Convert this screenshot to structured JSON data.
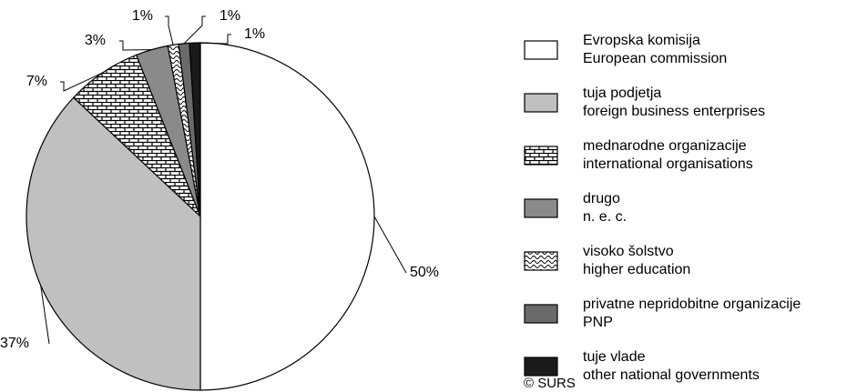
{
  "chart_data": {
    "type": "pie",
    "categories": [
      [
        "Evropska komisija",
        "European commission"
      ],
      [
        "tuja podjetja",
        "foreign business enterprises"
      ],
      [
        "mednarodne organizacije",
        "international organisations"
      ],
      [
        "drugo",
        "n. e. c."
      ],
      [
        "visoko šolstvo",
        "higher education"
      ],
      [
        "privatne nepridobitne organizacije",
        "PNP"
      ],
      [
        "tuje vlade",
        "other national governments"
      ]
    ],
    "values": [
      50,
      37,
      7,
      3,
      1,
      1,
      1
    ],
    "value_labels": [
      "50%",
      "37%",
      "7%",
      "3%",
      "1%",
      "1%",
      "1%"
    ],
    "colors": [
      "#ffffff",
      "#c0c0c0",
      "brick",
      "#8a8a8a",
      "wave",
      "#6a6a6a",
      "#1a1a1a"
    ],
    "source": "© SURS"
  }
}
